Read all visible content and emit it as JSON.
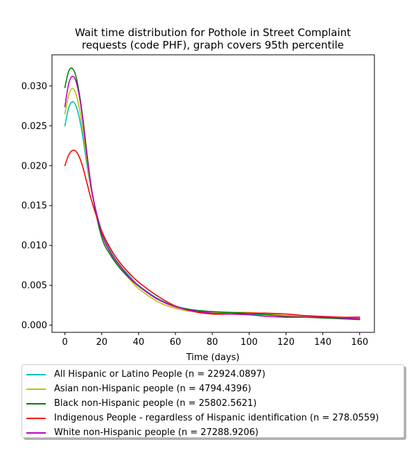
{
  "chart_data": {
    "type": "line",
    "title": "Wait time distribution  for Pothole in Street Complaint requests (code PHF), graph covers 95th percentile",
    "title_lines": [
      "Wait time distribution  for Pothole in Street Complaint",
      "requests (code PHF), graph covers 95th percentile"
    ],
    "xlabel": "Time (days)",
    "ylabel": "",
    "xlim": [
      -7,
      168
    ],
    "ylim": [
      -0.0009,
      0.0339
    ],
    "xticks": [
      0,
      20,
      40,
      60,
      80,
      100,
      120,
      140,
      160
    ],
    "xtick_labels": [
      "0",
      "20",
      "40",
      "60",
      "80",
      "100",
      "120",
      "140",
      "160"
    ],
    "yticks": [
      0.0,
      0.005,
      0.01,
      0.015,
      0.02,
      0.025,
      0.03
    ],
    "ytick_labels": [
      "0.000",
      "0.005",
      "0.010",
      "0.015",
      "0.020",
      "0.025",
      "0.030"
    ],
    "grid": false,
    "legend_position": "below the plot",
    "x": [
      0,
      2,
      4,
      6,
      8,
      10,
      12,
      15,
      20,
      25,
      30,
      35,
      40,
      50,
      60,
      70,
      80,
      90,
      100,
      110,
      120,
      130,
      140,
      150,
      160
    ],
    "series": [
      {
        "name": "All Hispanic or Latino People (n = 22924.0897)",
        "color": "#00bfbf",
        "values": [
          0.025,
          0.0272,
          0.028,
          0.0275,
          0.0258,
          0.0232,
          0.02,
          0.0162,
          0.0118,
          0.0092,
          0.0075,
          0.0062,
          0.005,
          0.0034,
          0.0024,
          0.0019,
          0.0016,
          0.0015,
          0.0014,
          0.0013,
          0.0012,
          0.0011,
          0.001,
          0.0009,
          0.0009
        ]
      },
      {
        "name": "Asian non-Hispanic people (n = 4794.4396)",
        "color": "#bfbf00",
        "values": [
          0.0265,
          0.0288,
          0.0297,
          0.029,
          0.027,
          0.024,
          0.0205,
          0.0163,
          0.0115,
          0.009,
          0.0072,
          0.0058,
          0.0046,
          0.003,
          0.0021,
          0.0017,
          0.0016,
          0.0016,
          0.0016,
          0.0014,
          0.0012,
          0.0011,
          0.001,
          0.0009,
          0.0009
        ]
      },
      {
        "name": "Black non-Hispanic people (n = 25802.5621)",
        "color": "#008000",
        "values": [
          0.0298,
          0.0318,
          0.0322,
          0.0312,
          0.0288,
          0.0255,
          0.0215,
          0.0163,
          0.011,
          0.0087,
          0.0071,
          0.0059,
          0.0049,
          0.0033,
          0.0023,
          0.0019,
          0.0017,
          0.0016,
          0.0015,
          0.0013,
          0.0011,
          0.001,
          0.0009,
          0.0008,
          0.0007
        ]
      },
      {
        "name": "Indigenous People - regardless of Hispanic identification (n = 278.0559)",
        "color": "#ff0000",
        "values": [
          0.02,
          0.0213,
          0.0219,
          0.0218,
          0.021,
          0.0196,
          0.0178,
          0.0152,
          0.0118,
          0.0095,
          0.0078,
          0.0065,
          0.0054,
          0.0037,
          0.0024,
          0.0017,
          0.0014,
          0.0014,
          0.0015,
          0.0015,
          0.0014,
          0.0012,
          0.0011,
          0.001,
          0.001
        ]
      },
      {
        "name": "White non-Hispanic people (n = 27288.9206)",
        "color": "#bf00bf",
        "values": [
          0.0274,
          0.0302,
          0.0312,
          0.0306,
          0.0285,
          0.0252,
          0.0212,
          0.0164,
          0.0115,
          0.009,
          0.0074,
          0.006,
          0.0049,
          0.0033,
          0.0023,
          0.0018,
          0.0015,
          0.0014,
          0.0013,
          0.0011,
          0.001,
          0.001,
          0.001,
          0.0009,
          0.0008
        ]
      }
    ]
  }
}
